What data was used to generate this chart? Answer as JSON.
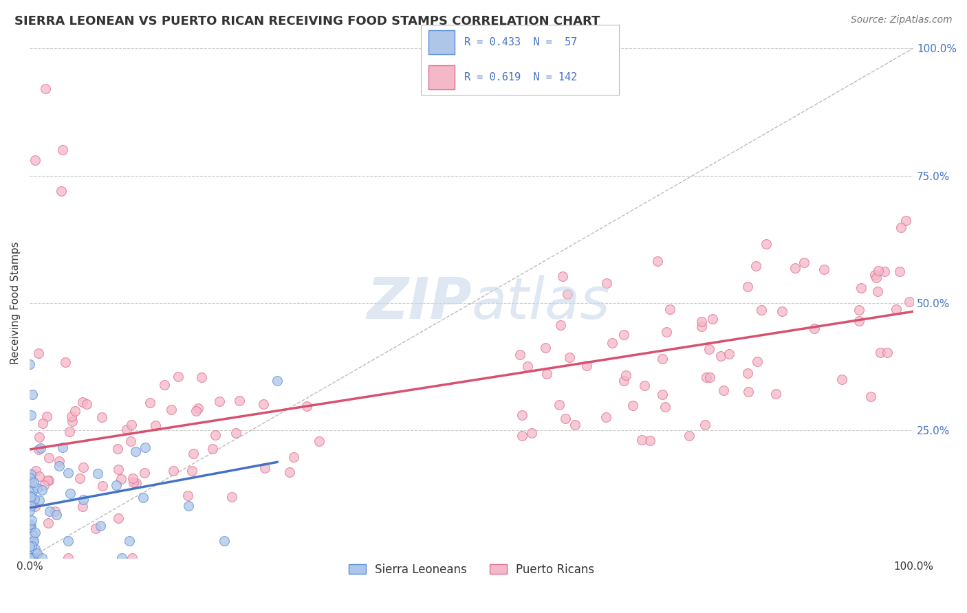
{
  "title": "SIERRA LEONEAN VS PUERTO RICAN RECEIVING FOOD STAMPS CORRELATION CHART",
  "source": "Source: ZipAtlas.com",
  "ylabel": "Receiving Food Stamps",
  "sierra_R": 0.433,
  "sierra_N": 57,
  "puerto_R": 0.619,
  "puerto_N": 142,
  "sierra_color": "#aec6e8",
  "puerto_color": "#f4b8c8",
  "sierra_edge_color": "#5b8dd9",
  "puerto_edge_color": "#e07090",
  "sierra_line_color": "#4472c4",
  "puerto_line_color": "#d9506e",
  "legend_text_color": "#4472c4",
  "watermark_color": "#c8d8ea",
  "background_color": "#ffffff",
  "grid_color": "#cccccc",
  "axis_label_color": "#4472c4",
  "x_lim": [
    0,
    1
  ],
  "y_lim": [
    0,
    1
  ],
  "right_ytick_labels": [
    "100.0%",
    "75.0%",
    "50.0%",
    "25.0%",
    ""
  ],
  "right_ytick_vals": [
    1.0,
    0.75,
    0.5,
    0.25,
    0.0
  ],
  "x_tick_labels": [
    "0.0%",
    "100.0%"
  ],
  "x_tick_vals": [
    0.0,
    1.0
  ],
  "puerto_line_x0": 0.0,
  "puerto_line_y0": 0.18,
  "puerto_line_x1": 1.0,
  "puerto_line_y1": 0.52,
  "sierra_line_x0": 0.0,
  "sierra_line_y0": 0.18,
  "sierra_line_x1": 0.15,
  "sierra_line_y1": 0.28
}
